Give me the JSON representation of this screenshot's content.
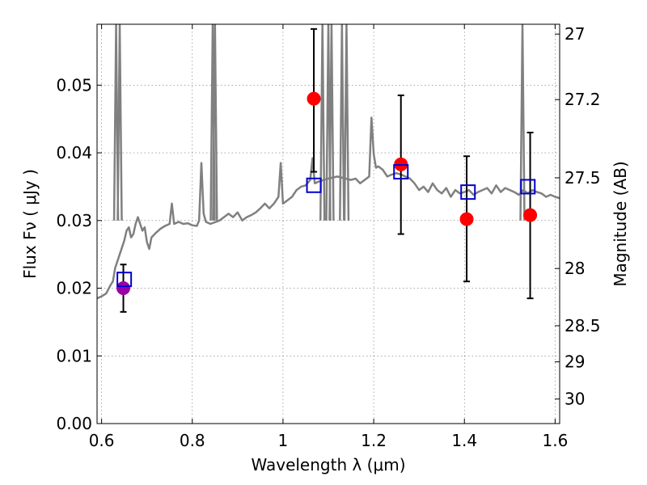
{
  "chart_data": {
    "type": "line",
    "xlabel": "Wavelength  λ (μm)",
    "ylabel": "Flux  Fν  ( μJy )",
    "ylabel_right": "Magnitude (AB)",
    "xlim": [
      0.59,
      1.61
    ],
    "ylim": [
      0.0,
      0.059
    ],
    "x_ticks": [
      0.6,
      0.8,
      1.0,
      1.2,
      1.4,
      1.6
    ],
    "x_tick_labels": [
      "0.6",
      "0.8",
      "1",
      "1.2",
      "1.4",
      "1.6"
    ],
    "y_ticks": [
      0.0,
      0.01,
      0.02,
      0.03,
      0.04,
      0.05
    ],
    "y_tick_labels": [
      "0.00",
      "0.01",
      "0.02",
      "0.03",
      "0.04",
      "0.05"
    ],
    "right_ticks": [
      {
        "label": "27",
        "value": 27.0
      },
      {
        "label": "27.2",
        "value": 27.2
      },
      {
        "label": "27.5",
        "value": 27.5
      },
      {
        "label": "28",
        "value": 28.0
      },
      {
        "label": "28.5",
        "value": 28.5
      },
      {
        "label": "29",
        "value": 29.0
      },
      {
        "label": "30",
        "value": 30.0
      }
    ],
    "grid": true,
    "series": [
      {
        "kind": "line",
        "color": "#808080",
        "x": [
          0.59,
          0.6,
          0.61,
          0.62,
          0.625,
          0.63,
          0.635,
          0.64,
          0.645,
          0.65,
          0.655,
          0.66,
          0.665,
          0.67,
          0.675,
          0.68,
          0.685,
          0.69,
          0.695,
          0.7,
          0.705,
          0.71,
          0.72,
          0.73,
          0.74,
          0.75,
          0.755,
          0.76,
          0.77,
          0.78,
          0.79,
          0.8,
          0.81,
          0.815,
          0.82,
          0.825,
          0.83,
          0.84,
          0.86,
          0.87,
          0.88,
          0.89,
          0.9,
          0.91,
          0.92,
          0.93,
          0.94,
          0.95,
          0.96,
          0.97,
          0.98,
          0.99,
          0.995,
          1.0,
          1.01,
          1.02,
          1.03,
          1.04,
          1.05,
          1.06,
          1.065,
          1.07,
          1.08,
          1.09,
          1.1,
          1.12,
          1.15,
          1.16,
          1.17,
          1.18,
          1.19,
          1.195,
          1.2,
          1.205,
          1.21,
          1.22,
          1.23,
          1.24,
          1.25,
          1.26,
          1.27,
          1.28,
          1.29,
          1.3,
          1.31,
          1.32,
          1.33,
          1.34,
          1.35,
          1.36,
          1.37,
          1.38,
          1.39,
          1.4,
          1.41,
          1.42,
          1.43,
          1.44,
          1.45,
          1.46,
          1.47,
          1.48,
          1.49,
          1.5,
          1.51,
          1.52,
          1.53,
          1.54,
          1.55,
          1.56,
          1.57,
          1.58,
          1.59,
          1.6,
          1.61
        ],
        "y": [
          0.0185,
          0.0188,
          0.0192,
          0.0205,
          0.021,
          0.023,
          0.024,
          0.025,
          0.026,
          0.027,
          0.0285,
          0.029,
          0.0275,
          0.028,
          0.0295,
          0.0305,
          0.0295,
          0.0285,
          0.029,
          0.0268,
          0.0258,
          0.0275,
          0.0282,
          0.0288,
          0.0292,
          0.0295,
          0.0325,
          0.0295,
          0.0298,
          0.0295,
          0.0296,
          0.0293,
          0.0292,
          0.03,
          0.0385,
          0.031,
          0.0298,
          0.0295,
          0.03,
          0.0305,
          0.031,
          0.0305,
          0.0312,
          0.03,
          0.0305,
          0.0308,
          0.0312,
          0.0318,
          0.0325,
          0.0318,
          0.0325,
          0.0335,
          0.0385,
          0.0325,
          0.033,
          0.0335,
          0.0345,
          0.035,
          0.0352,
          0.036,
          0.0392,
          0.0355,
          0.0358,
          0.036,
          0.0362,
          0.0365,
          0.036,
          0.0362,
          0.0355,
          0.036,
          0.0365,
          0.0452,
          0.0398,
          0.0378,
          0.038,
          0.0375,
          0.0365,
          0.0368,
          0.037,
          0.0368,
          0.0365,
          0.0362,
          0.0355,
          0.0345,
          0.035,
          0.0342,
          0.0355,
          0.0345,
          0.034,
          0.0348,
          0.0335,
          0.0345,
          0.034,
          0.0342,
          0.0345,
          0.0338,
          0.0342,
          0.0345,
          0.0348,
          0.034,
          0.0352,
          0.0342,
          0.0348,
          0.0345,
          0.0342,
          0.0338,
          0.0345,
          0.034,
          0.0345,
          0.0342,
          0.034,
          0.0335,
          0.0338,
          0.0335,
          0.0333
        ]
      },
      {
        "kind": "spikes",
        "color": "#808080",
        "x": [
          0.632,
          0.64,
          0.845,
          0.85,
          1.087,
          1.1,
          1.107,
          1.13,
          1.14,
          1.528
        ],
        "y": [
          0.059,
          0.059,
          0.059,
          0.059,
          0.059,
          0.059,
          0.059,
          0.059,
          0.059,
          0.059
        ]
      },
      {
        "kind": "errorbar-points",
        "color": "#ff0000",
        "x": [
          1.068,
          1.26,
          1.405,
          1.545
        ],
        "y": [
          0.048,
          0.0383,
          0.0302,
          0.0308
        ],
        "y_low": [
          0.0372,
          0.028,
          0.021,
          0.0185
        ],
        "y_high": [
          0.0583,
          0.0485,
          0.0395,
          0.043
        ]
      },
      {
        "kind": "errorbar-points",
        "color": "#9900aa",
        "x": [
          0.648
        ],
        "y": [
          0.02
        ],
        "y_low": [
          0.0165
        ],
        "y_high": [
          0.0235
        ]
      },
      {
        "kind": "open-squares",
        "color": "#0000cc",
        "x": [
          0.65,
          1.068,
          1.26,
          1.408,
          1.54
        ],
        "y": [
          0.0213,
          0.0352,
          0.0372,
          0.0342,
          0.035
        ]
      }
    ]
  }
}
